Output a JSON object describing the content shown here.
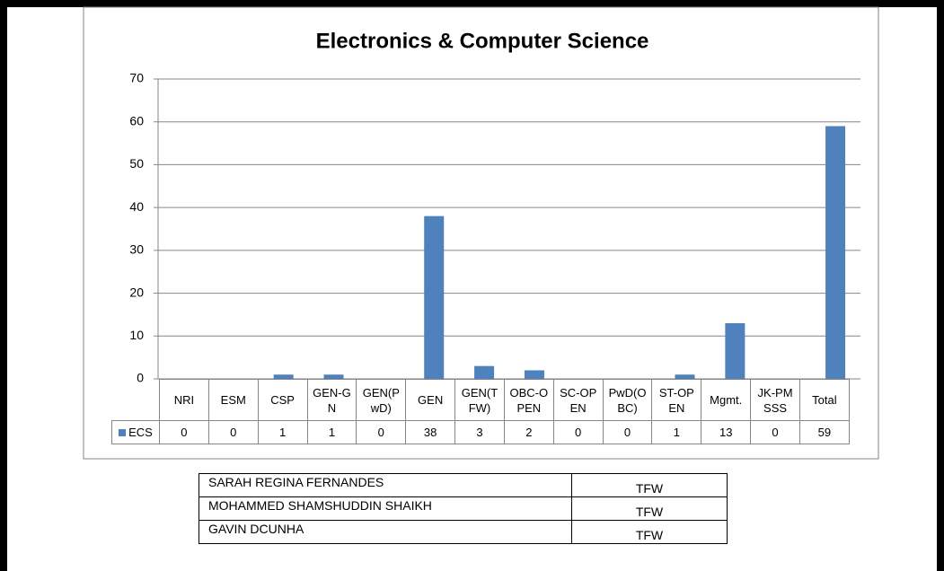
{
  "chart_data": {
    "type": "bar",
    "title": "Electronics & Computer Science",
    "categories": [
      "NRI",
      "ESM",
      "CSP",
      "GEN-GN",
      "GEN(PwD)",
      "GEN",
      "GEN(TFW)",
      "OBC-OPEN",
      "SC-OPEN",
      "PwD(OBC)",
      "ST-OPEN",
      "Mgmt.",
      "JK-PMSSS",
      "Total"
    ],
    "series": [
      {
        "name": "ECS",
        "color": "#4f81bd",
        "values": [
          0,
          0,
          1,
          1,
          0,
          38,
          3,
          2,
          0,
          0,
          1,
          13,
          0,
          59
        ]
      }
    ],
    "ylim": [
      0,
      70
    ],
    "yticks": [
      0,
      10,
      20,
      30,
      40,
      50,
      60,
      70
    ],
    "grid": true
  },
  "table": {
    "rows": [
      [
        "SARAH REGINA FERNANDES",
        "TFW"
      ],
      [
        "MOHAMMED SHAMSHUDDIN SHAIKH",
        "TFW"
      ],
      [
        "GAVIN DCUNHA",
        "TFW"
      ]
    ]
  }
}
